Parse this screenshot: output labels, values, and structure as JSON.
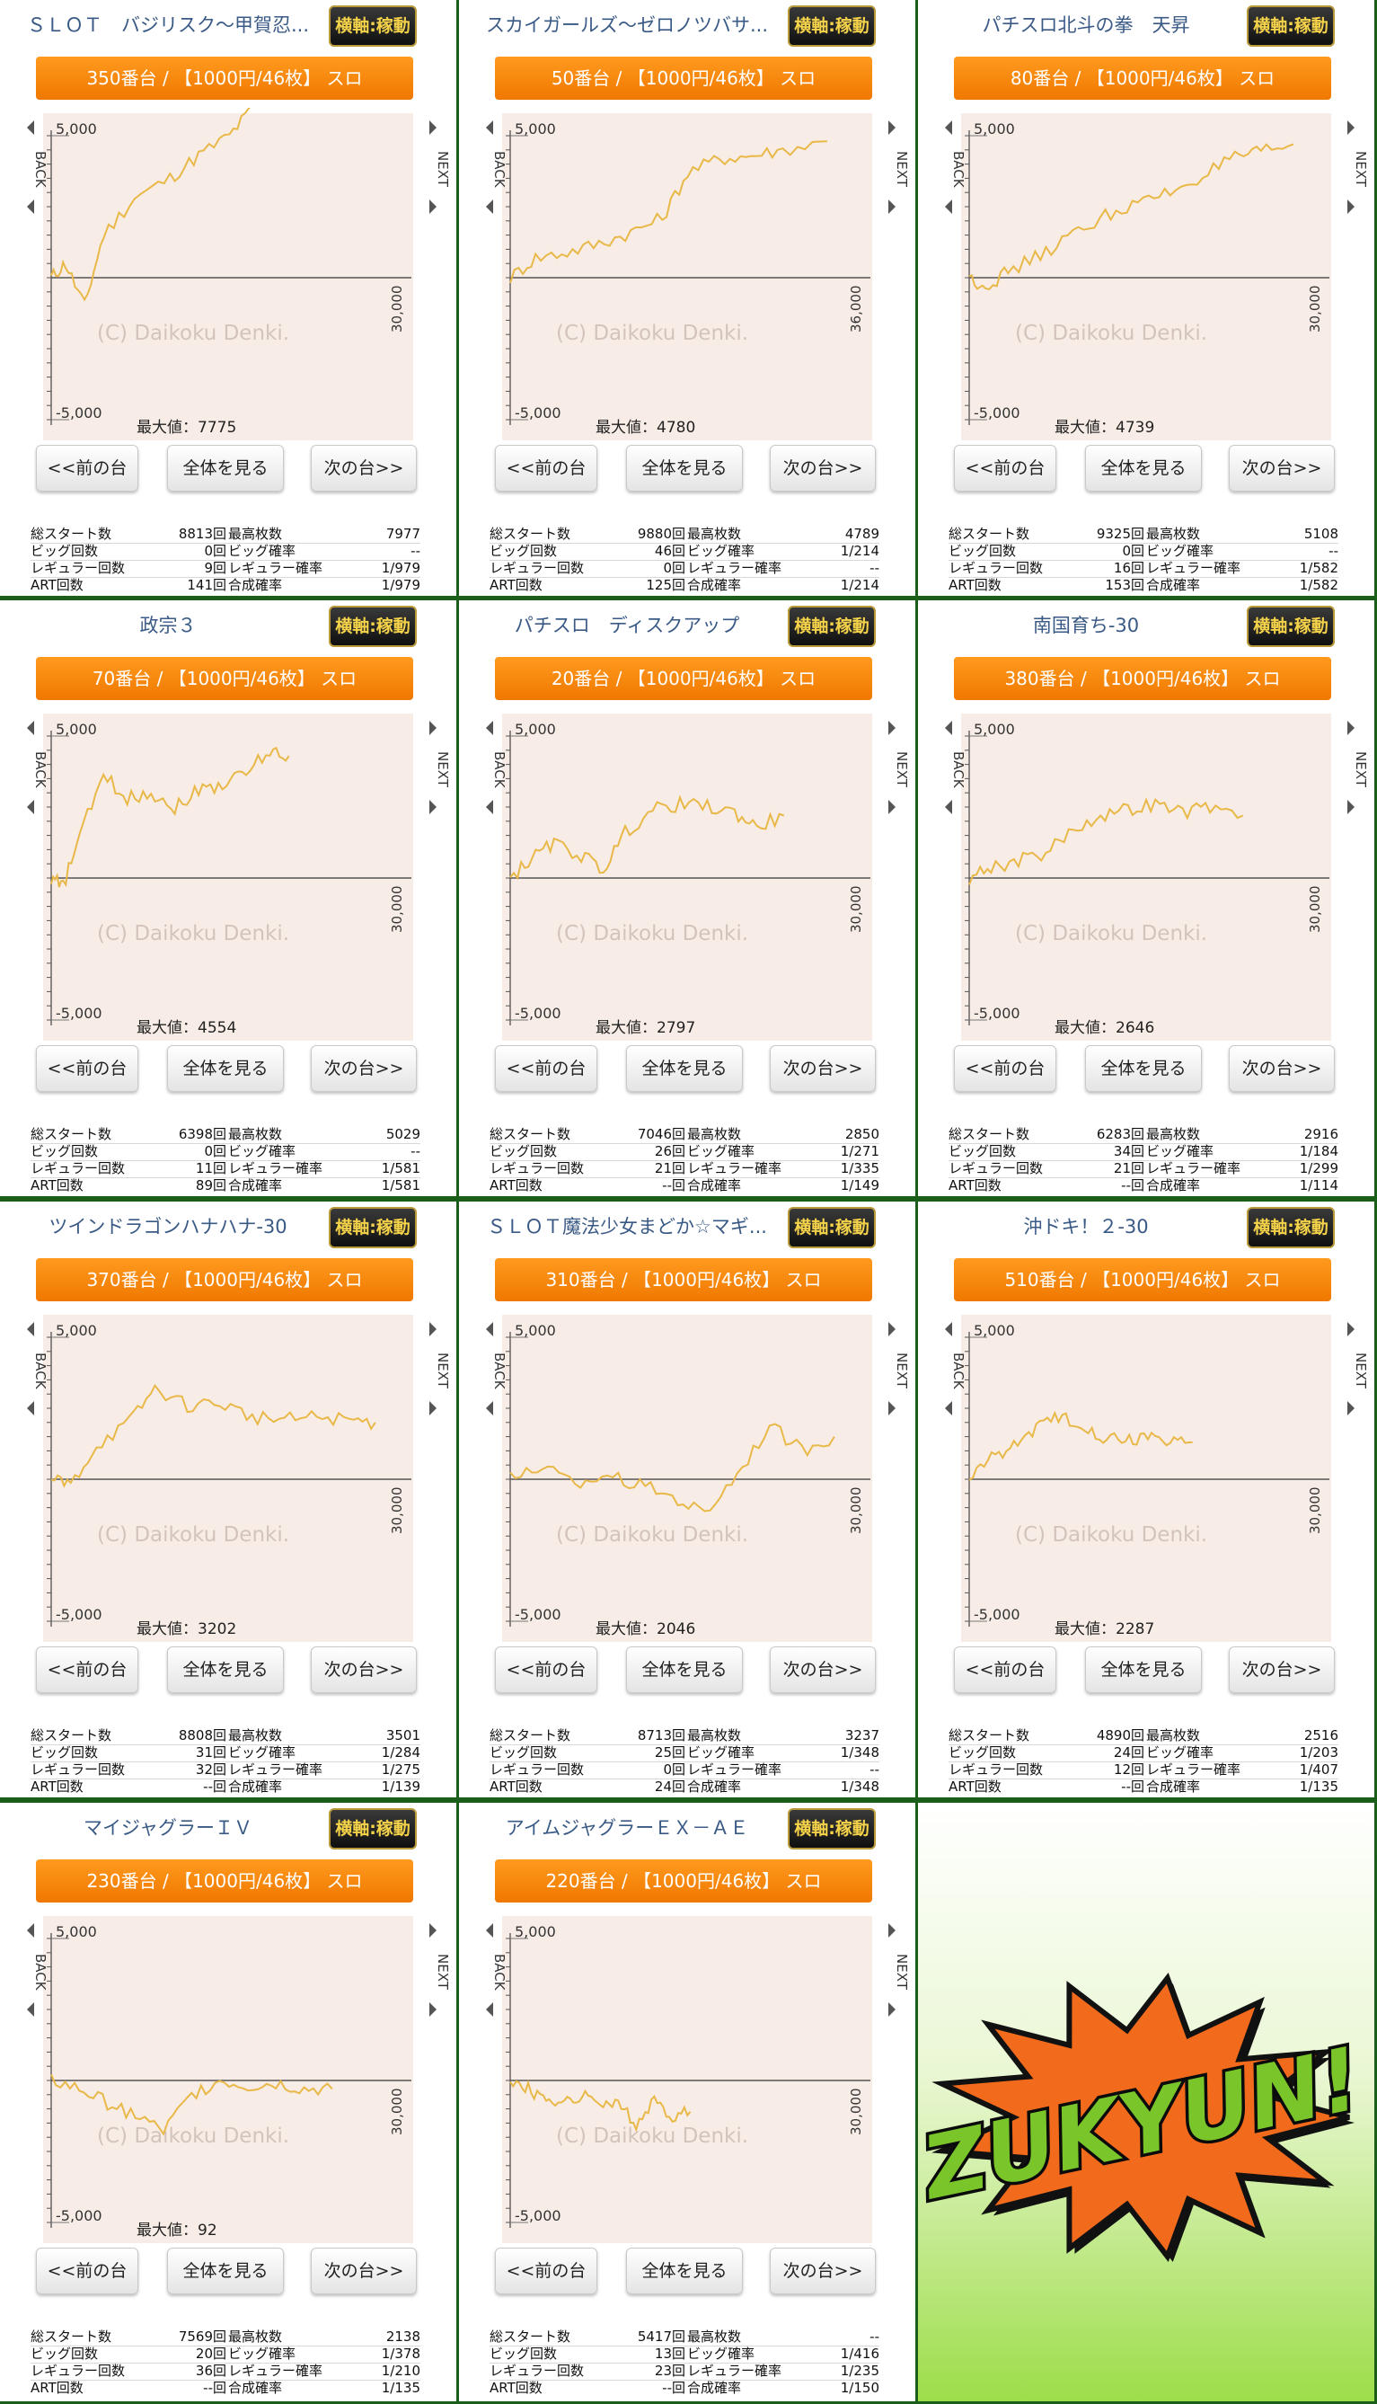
{
  "copyright": "(C) Daikoku Denki.",
  "labels": {
    "y_max": "5,000",
    "y_min": "-5,000",
    "x_max_default": "30,000",
    "back": "BACK",
    "next": "NEXT",
    "max_prefix": "最大値：",
    "badge": "横軸:稼動",
    "btn_prev": "<<前の台",
    "btn_all": "全体を見る",
    "btn_next": "次の台>>"
  },
  "machines": [
    {
      "title": "ＳＬＯＴ　バジリスク～甲賀忍...",
      "unit": "350番台 / 【1000円/46枚】 スロ",
      "max_value": "7775",
      "x_max": "30,000",
      "stats": [
        [
          "総スタート数",
          "8813回",
          "最高枚数",
          "7977"
        ],
        [
          "ビッグ回数",
          "0回",
          "ビッグ確率",
          "--"
        ],
        [
          "レギュラー回数",
          "9回",
          "レギュラー確率",
          "1/979"
        ],
        [
          "ART回数",
          "141回",
          "合成確率",
          "1/979"
        ]
      ]
    },
    {
      "title": "スカイガールズ～ゼロノツバサ...",
      "unit": "50番台 / 【1000円/46枚】 スロ",
      "max_value": "4780",
      "x_max": "36,000",
      "stats": [
        [
          "総スタート数",
          "9880回",
          "最高枚数",
          "4789"
        ],
        [
          "ビッグ回数",
          "46回",
          "ビッグ確率",
          "1/214"
        ],
        [
          "レギュラー回数",
          "0回",
          "レギュラー確率",
          "--"
        ],
        [
          "ART回数",
          "125回",
          "合成確率",
          "1/214"
        ]
      ]
    },
    {
      "title": "パチスロ北斗の拳　天昇",
      "unit": "80番台 / 【1000円/46枚】 スロ",
      "max_value": "4739",
      "x_max": "30,000",
      "stats": [
        [
          "総スタート数",
          "9325回",
          "最高枚数",
          "5108"
        ],
        [
          "ビッグ回数",
          "0回",
          "ビッグ確率",
          "--"
        ],
        [
          "レギュラー回数",
          "16回",
          "レギュラー確率",
          "1/582"
        ],
        [
          "ART回数",
          "153回",
          "合成確率",
          "1/582"
        ]
      ]
    },
    {
      "title": "政宗３",
      "unit": "70番台 / 【1000円/46枚】 スロ",
      "max_value": "4554",
      "x_max": "30,000",
      "stats": [
        [
          "総スタート数",
          "6398回",
          "最高枚数",
          "5029"
        ],
        [
          "ビッグ回数",
          "0回",
          "ビッグ確率",
          "--"
        ],
        [
          "レギュラー回数",
          "11回",
          "レギュラー確率",
          "1/581"
        ],
        [
          "ART回数",
          "89回",
          "合成確率",
          "1/581"
        ]
      ]
    },
    {
      "title": "パチスロ　ディスクアップ",
      "unit": "20番台 / 【1000円/46枚】 スロ",
      "max_value": "2797",
      "x_max": "30,000",
      "stats": [
        [
          "総スタート数",
          "7046回",
          "最高枚数",
          "2850"
        ],
        [
          "ビッグ回数",
          "26回",
          "ビッグ確率",
          "1/271"
        ],
        [
          "レギュラー回数",
          "21回",
          "レギュラー確率",
          "1/335"
        ],
        [
          "ART回数",
          "--回",
          "合成確率",
          "1/149"
        ]
      ]
    },
    {
      "title": "南国育ち-30",
      "unit": "380番台 / 【1000円/46枚】 スロ",
      "max_value": "2646",
      "x_max": "30,000",
      "stats": [
        [
          "総スタート数",
          "6283回",
          "最高枚数",
          "2916"
        ],
        [
          "ビッグ回数",
          "34回",
          "ビッグ確率",
          "1/184"
        ],
        [
          "レギュラー回数",
          "21回",
          "レギュラー確率",
          "1/299"
        ],
        [
          "ART回数",
          "--回",
          "合成確率",
          "1/114"
        ]
      ]
    },
    {
      "title": "ツインドラゴンハナハナ-30",
      "unit": "370番台 / 【1000円/46枚】 スロ",
      "max_value": "3202",
      "x_max": "30,000",
      "stats": [
        [
          "総スタート数",
          "8808回",
          "最高枚数",
          "3501"
        ],
        [
          "ビッグ回数",
          "31回",
          "ビッグ確率",
          "1/284"
        ],
        [
          "レギュラー回数",
          "32回",
          "レギュラー確率",
          "1/275"
        ],
        [
          "ART回数",
          "--回",
          "合成確率",
          "1/139"
        ]
      ]
    },
    {
      "title": "ＳＬＯＴ魔法少女まどか☆マギ...",
      "unit": "310番台 / 【1000円/46枚】 スロ",
      "max_value": "2046",
      "x_max": "30,000",
      "stats": [
        [
          "総スタート数",
          "8713回",
          "最高枚数",
          "3237"
        ],
        [
          "ビッグ回数",
          "25回",
          "ビッグ確率",
          "1/348"
        ],
        [
          "レギュラー回数",
          "0回",
          "レギュラー確率",
          "--"
        ],
        [
          "ART回数",
          "24回",
          "合成確率",
          "1/348"
        ]
      ]
    },
    {
      "title": "沖ドキ！２-30",
      "unit": "510番台 / 【1000円/46枚】 スロ",
      "max_value": "2287",
      "x_max": "30,000",
      "stats": [
        [
          "総スタート数",
          "4890回",
          "最高枚数",
          "2516"
        ],
        [
          "ビッグ回数",
          "24回",
          "ビッグ確率",
          "1/203"
        ],
        [
          "レギュラー回数",
          "12回",
          "レギュラー確率",
          "1/407"
        ],
        [
          "ART回数",
          "--回",
          "合成確率",
          "1/135"
        ]
      ]
    },
    {
      "title": "マイジャグラーＩＶ",
      "unit": "230番台 / 【1000円/46枚】 スロ",
      "max_value": "92",
      "x_max": "30,000",
      "stats": [
        [
          "総スタート数",
          "7569回",
          "最高枚数",
          "2138"
        ],
        [
          "ビッグ回数",
          "20回",
          "ビッグ確率",
          "1/378"
        ],
        [
          "レギュラー回数",
          "36回",
          "レギュラー確率",
          "1/210"
        ],
        [
          "ART回数",
          "--回",
          "合成確率",
          "1/135"
        ]
      ]
    },
    {
      "title": "アイムジャグラーＥＸ－ＡＥ",
      "unit": "220番台 / 【1000円/46枚】 スロ",
      "max_value": "",
      "x_max": "30,000",
      "stats": [
        [
          "総スタート数",
          "5417回",
          "最高枚数",
          "--"
        ],
        [
          "ビッグ回数",
          "13回",
          "ビッグ確率",
          "1/416"
        ],
        [
          "レギュラー回数",
          "23回",
          "レギュラー確率",
          "1/235"
        ],
        [
          "ART回数",
          "--回",
          "合成確率",
          "1/150"
        ]
      ]
    }
  ],
  "logo_text": "ZUKYUN!"
}
